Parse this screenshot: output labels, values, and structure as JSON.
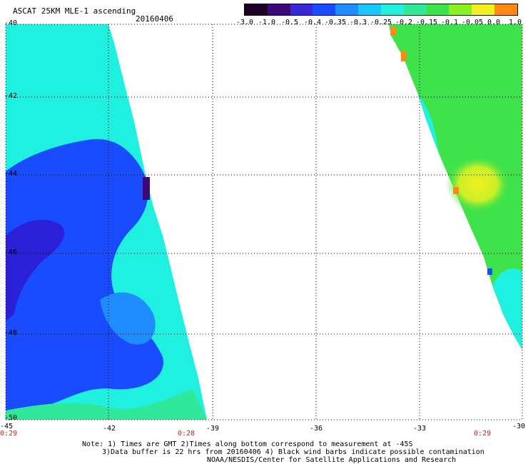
{
  "header": {
    "product": "ASCAT 25KM MLE-1 ascending",
    "date": "20160406"
  },
  "colorbar": {
    "labels": [
      "-3.0",
      "-1.0",
      "-0.5",
      "-0.4",
      "-0.35",
      "-0.3",
      "-0.25",
      "-0.2",
      "-0.15",
      "-0.1",
      "-0.05",
      "0.0",
      "1.0"
    ],
    "colors": [
      "#1a0026",
      "#3c0a78",
      "#3a28d6",
      "#1a4cff",
      "#1f8cff",
      "#19c8ff",
      "#1ff0e0",
      "#2fe89a",
      "#3ee24a",
      "#8cf020",
      "#f2f020",
      "#ff8a10",
      "#ff2a00"
    ]
  },
  "axes": {
    "lat_labels": [
      "-40",
      "-42",
      "-44",
      "-46",
      "-48",
      "-50"
    ],
    "lon_labels": [
      "-45",
      "-42",
      "-39",
      "-36",
      "-33",
      "-30"
    ],
    "time_labels": [
      "0:29",
      "0:28",
      "0:29"
    ]
  },
  "notes": {
    "line1": "Note: 1) Times are GMT 2)Times along bottom correspond to measurement at -45S",
    "line2": "3)Data buffer is 22 hrs from 20160406 4) Black wind barbs indicate possible contamination",
    "line3": "NOAA/NESDIS/Center for Satellite Applications and Research"
  },
  "swath_colors": {
    "west_cyan": "#1ff0e0",
    "west_blue": "#1a4cff",
    "west_deep": "#2a20d8",
    "west_teal": "#2fe89a",
    "east_green": "#3ee24a",
    "east_yellow": "#f2f020",
    "east_orange": "#ff8a10"
  }
}
